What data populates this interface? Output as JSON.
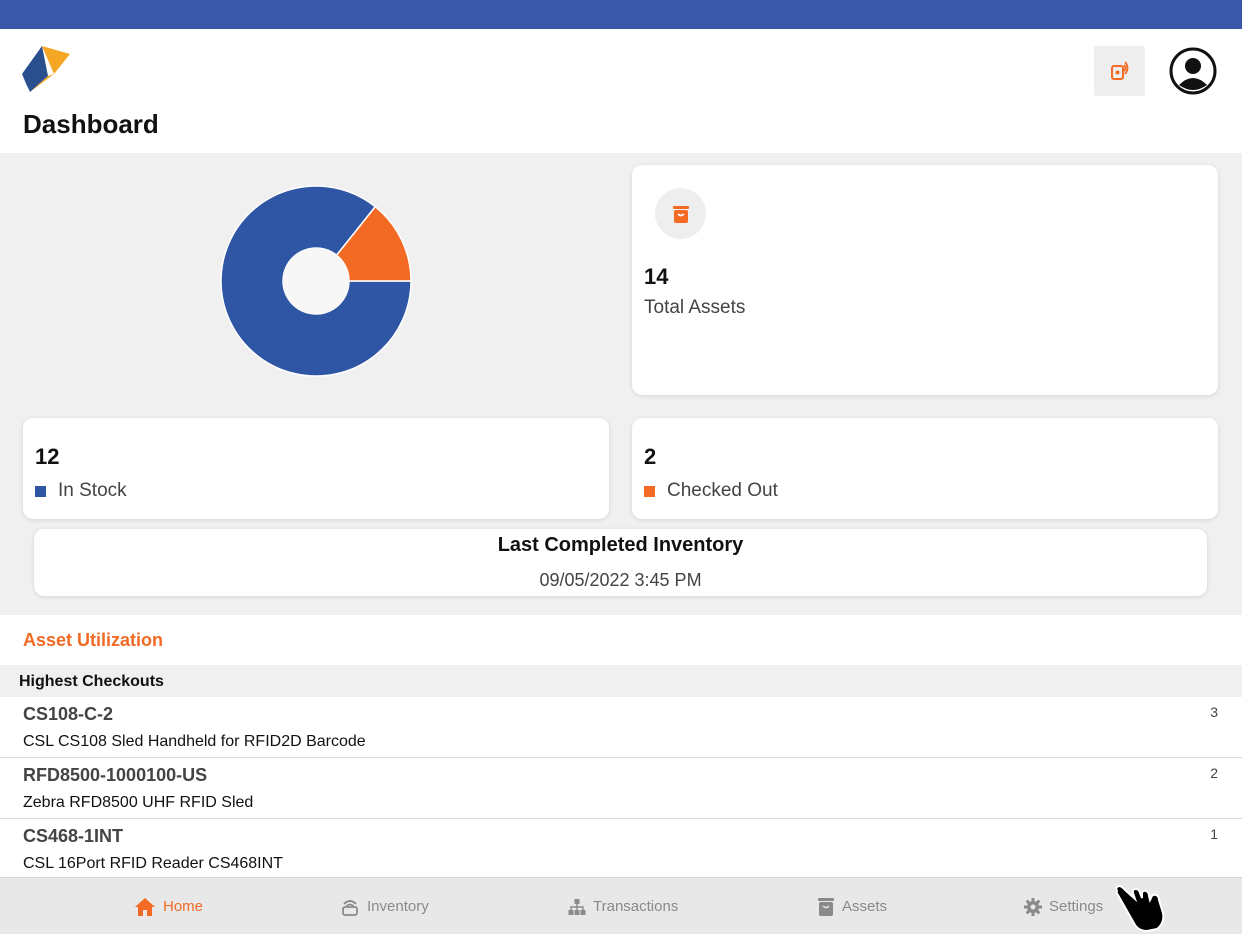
{
  "app": {
    "page_title": "Dashboard",
    "accent": "#f26a24",
    "primary": "#2f55a5",
    "status_bar_color": "#3b58a8"
  },
  "header": {
    "logo_icon": "app-logo-icon",
    "rfid_icon": "rfid-reader-icon",
    "profile_icon": "user-profile-icon"
  },
  "chart_data": {
    "type": "pie",
    "categories": [
      "In Stock",
      "Checked Out"
    ],
    "values": [
      12,
      2
    ],
    "colors": [
      "#2f55a5",
      "#f26a24"
    ],
    "donut": true
  },
  "summary": {
    "total": {
      "value": "14",
      "label": "Total Assets",
      "icon": "box-icon"
    },
    "in_stock": {
      "value": "12",
      "label": "In Stock",
      "color": "#2f55a5"
    },
    "checked_out": {
      "value": "2",
      "label": "Checked Out",
      "color": "#f26a24"
    }
  },
  "inventory": {
    "title": "Last Completed Inventory",
    "date": "09/05/2022 3:45 PM"
  },
  "utilization": {
    "title": "Asset Utilization",
    "section_header": "Highest Checkouts",
    "items": [
      {
        "code": "CS108-C-2",
        "description": "CSL CS108 Sled Handheld for RFID2D Barcode",
        "count": "3"
      },
      {
        "code": "RFD8500-1000100-US",
        "description": "Zebra RFD8500 UHF RFID Sled",
        "count": "2"
      },
      {
        "code": "CS468-1INT",
        "description": "CSL 16Port RFID Reader CS468INT",
        "count": "1"
      }
    ]
  },
  "tabbar": {
    "tabs": [
      {
        "label": "Home",
        "icon": "home-icon",
        "active": true
      },
      {
        "label": "Inventory",
        "icon": "inventory-scan-icon",
        "active": false
      },
      {
        "label": "Transactions",
        "icon": "hierarchy-icon",
        "active": false
      },
      {
        "label": "Assets",
        "icon": "box-icon",
        "active": false
      },
      {
        "label": "Settings",
        "icon": "gear-icon",
        "active": false
      }
    ]
  }
}
